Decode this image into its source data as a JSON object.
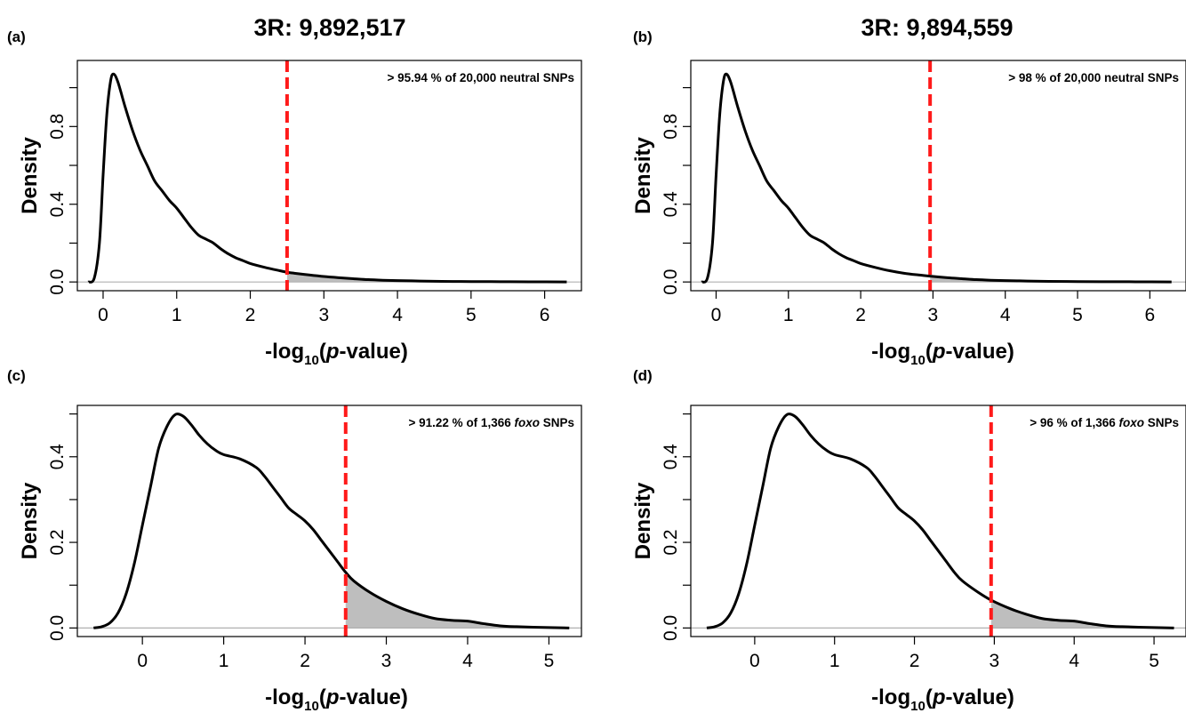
{
  "chart_data": [
    {
      "type": "area",
      "panel_label": "(a)",
      "title": "3R: 9,892,517",
      "xlabel_prefix": "-log",
      "xlabel_sub": "10",
      "xlabel_open": "(",
      "xlabel_italic": "p",
      "xlabel_suffix": "-value)",
      "ylabel": "Density",
      "annotation_pre": "> 95.94 % of 20,000 neutral SNPs",
      "annotation_italic": "",
      "annotation_post": "",
      "threshold": 2.5,
      "xlim": [
        -0.35,
        6.5
      ],
      "ylim": [
        -0.045,
        1.14
      ],
      "xticks": [
        0,
        1,
        2,
        3,
        4,
        5,
        6
      ],
      "yticks": [
        0.0,
        0.4,
        0.8
      ],
      "ytick_labels": [
        "0.0",
        "0.4",
        "0.8"
      ],
      "grid": false,
      "series": [
        {
          "x": [
            -0.2,
            -0.12,
            -0.05,
            0.0,
            0.05,
            0.1,
            0.14,
            0.2,
            0.3,
            0.4,
            0.5,
            0.6,
            0.7,
            0.8,
            0.9,
            1.0,
            1.1,
            1.2,
            1.3,
            1.4,
            1.5,
            1.6,
            1.7,
            1.8,
            1.9,
            2.0,
            2.2,
            2.4,
            2.5,
            2.6,
            2.8,
            3.0,
            3.2,
            3.4,
            3.6,
            3.8,
            4.0,
            4.3,
            4.6,
            5.0,
            5.4,
            5.8,
            6.3
          ],
          "y": [
            0.0,
            0.02,
            0.2,
            0.55,
            0.86,
            1.03,
            1.07,
            1.03,
            0.9,
            0.78,
            0.68,
            0.6,
            0.52,
            0.47,
            0.42,
            0.38,
            0.33,
            0.28,
            0.24,
            0.22,
            0.2,
            0.17,
            0.145,
            0.125,
            0.11,
            0.095,
            0.075,
            0.058,
            0.05,
            0.045,
            0.036,
            0.028,
            0.022,
            0.017,
            0.012,
            0.009,
            0.007,
            0.005,
            0.003,
            0.002,
            0.0015,
            0.001,
            0.0
          ]
        }
      ]
    },
    {
      "type": "area",
      "panel_label": "(b)",
      "title": "3R: 9,894,559",
      "xlabel_prefix": "-log",
      "xlabel_sub": "10",
      "xlabel_open": "(",
      "xlabel_italic": "p",
      "xlabel_suffix": "-value)",
      "ylabel": "Density",
      "annotation_pre": "> 98 % of 20,000 neutral SNPs",
      "annotation_italic": "",
      "annotation_post": "",
      "threshold": 2.96,
      "xlim": [
        -0.35,
        6.5
      ],
      "ylim": [
        -0.045,
        1.14
      ],
      "xticks": [
        0,
        1,
        2,
        3,
        4,
        5,
        6
      ],
      "yticks": [
        0.0,
        0.4,
        0.8
      ],
      "ytick_labels": [
        "0.0",
        "0.4",
        "0.8"
      ],
      "grid": false,
      "series": [
        {
          "x": [
            -0.2,
            -0.12,
            -0.05,
            0.0,
            0.05,
            0.1,
            0.14,
            0.2,
            0.3,
            0.4,
            0.5,
            0.6,
            0.7,
            0.8,
            0.9,
            1.0,
            1.1,
            1.2,
            1.3,
            1.4,
            1.5,
            1.6,
            1.7,
            1.8,
            1.9,
            2.0,
            2.2,
            2.4,
            2.6,
            2.8,
            2.96,
            3.2,
            3.4,
            3.6,
            3.8,
            4.0,
            4.3,
            4.6,
            5.0,
            5.4,
            5.8,
            6.3
          ],
          "y": [
            0.0,
            0.02,
            0.2,
            0.55,
            0.86,
            1.03,
            1.07,
            1.03,
            0.9,
            0.78,
            0.68,
            0.6,
            0.52,
            0.47,
            0.42,
            0.38,
            0.33,
            0.28,
            0.24,
            0.22,
            0.2,
            0.17,
            0.145,
            0.125,
            0.11,
            0.095,
            0.075,
            0.058,
            0.045,
            0.036,
            0.03,
            0.022,
            0.017,
            0.012,
            0.009,
            0.007,
            0.005,
            0.003,
            0.002,
            0.0015,
            0.001,
            0.0
          ]
        }
      ]
    },
    {
      "type": "area",
      "panel_label": "(c)",
      "title": "",
      "xlabel_prefix": "-log",
      "xlabel_sub": "10",
      "xlabel_open": "(",
      "xlabel_italic": "p",
      "xlabel_suffix": "-value)",
      "ylabel": "Density",
      "annotation_pre": "> 91.22 % of 1,366 ",
      "annotation_italic": "foxo",
      "annotation_post": " SNPs",
      "threshold": 2.5,
      "xlim": [
        -0.8,
        5.4
      ],
      "ylim": [
        -0.02,
        0.52
      ],
      "xticks": [
        0,
        1,
        2,
        3,
        4,
        5
      ],
      "yticks": [
        0.0,
        0.2,
        0.4
      ],
      "ytick_labels": [
        "0.0",
        "0.2",
        "0.4"
      ],
      "grid": false,
      "series": [
        {
          "x": [
            -0.6,
            -0.5,
            -0.4,
            -0.3,
            -0.2,
            -0.1,
            0.0,
            0.1,
            0.2,
            0.3,
            0.4,
            0.5,
            0.6,
            0.7,
            0.8,
            0.9,
            1.0,
            1.2,
            1.4,
            1.5,
            1.6,
            1.7,
            1.8,
            1.9,
            2.0,
            2.1,
            2.2,
            2.3,
            2.4,
            2.5,
            2.6,
            2.8,
            3.0,
            3.2,
            3.4,
            3.6,
            3.8,
            4.0,
            4.2,
            4.4,
            4.6,
            5.0,
            5.25
          ],
          "y": [
            0.0,
            0.003,
            0.012,
            0.035,
            0.08,
            0.15,
            0.24,
            0.33,
            0.42,
            0.47,
            0.498,
            0.495,
            0.475,
            0.45,
            0.43,
            0.415,
            0.405,
            0.395,
            0.375,
            0.355,
            0.33,
            0.305,
            0.28,
            0.265,
            0.25,
            0.23,
            0.205,
            0.18,
            0.155,
            0.13,
            0.11,
            0.083,
            0.062,
            0.045,
            0.032,
            0.022,
            0.018,
            0.016,
            0.01,
            0.005,
            0.003,
            0.001,
            0.0
          ]
        }
      ]
    },
    {
      "type": "area",
      "panel_label": "(d)",
      "title": "",
      "xlabel_prefix": "-log",
      "xlabel_sub": "10",
      "xlabel_open": "(",
      "xlabel_italic": "p",
      "xlabel_suffix": "-value)",
      "ylabel": "Density",
      "annotation_pre": "> 96 % of 1,366 ",
      "annotation_italic": "foxo",
      "annotation_post": " SNPs",
      "threshold": 2.96,
      "xlim": [
        -0.8,
        5.4
      ],
      "ylim": [
        -0.02,
        0.52
      ],
      "xticks": [
        0,
        1,
        2,
        3,
        4,
        5
      ],
      "yticks": [
        0.0,
        0.2,
        0.4
      ],
      "ytick_labels": [
        "0.0",
        "0.2",
        "0.4"
      ],
      "grid": false,
      "series": [
        {
          "x": [
            -0.6,
            -0.5,
            -0.4,
            -0.3,
            -0.2,
            -0.1,
            0.0,
            0.1,
            0.2,
            0.3,
            0.4,
            0.5,
            0.6,
            0.7,
            0.8,
            0.9,
            1.0,
            1.2,
            1.4,
            1.5,
            1.6,
            1.7,
            1.8,
            1.9,
            2.0,
            2.1,
            2.2,
            2.3,
            2.4,
            2.5,
            2.6,
            2.8,
            2.96,
            3.2,
            3.4,
            3.6,
            3.8,
            4.0,
            4.2,
            4.4,
            4.6,
            5.0,
            5.25
          ],
          "y": [
            0.0,
            0.003,
            0.012,
            0.035,
            0.08,
            0.15,
            0.24,
            0.33,
            0.42,
            0.47,
            0.498,
            0.495,
            0.475,
            0.45,
            0.43,
            0.415,
            0.405,
            0.395,
            0.375,
            0.355,
            0.33,
            0.305,
            0.28,
            0.265,
            0.25,
            0.23,
            0.205,
            0.18,
            0.155,
            0.13,
            0.11,
            0.083,
            0.065,
            0.045,
            0.032,
            0.022,
            0.018,
            0.016,
            0.01,
            0.005,
            0.003,
            0.001,
            0.0
          ]
        }
      ]
    }
  ]
}
